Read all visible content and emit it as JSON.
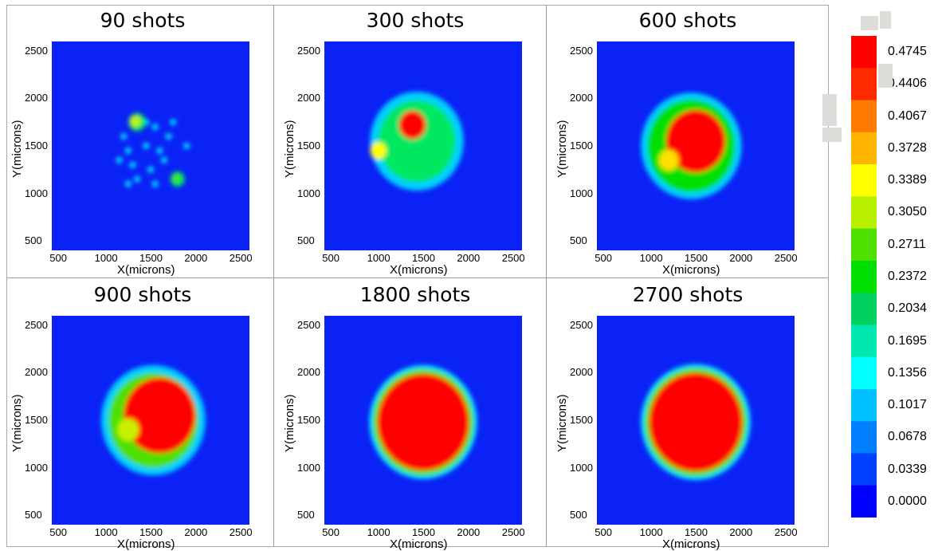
{
  "chart_data": {
    "type": "heatmap",
    "x_label": "X(microns)",
    "y_label": "Y(microns)",
    "x_ticks": [
      "500",
      "1000",
      "1500",
      "2000",
      "2500"
    ],
    "y_ticks": [
      "500",
      "1000",
      "1500",
      "2000",
      "2500"
    ],
    "xlim": [
      400,
      2600
    ],
    "ylim": [
      400,
      2600
    ],
    "panels": [
      {
        "title": "90 shots",
        "shots": 90,
        "note": "scattered small spots, two larger blobs near (1350,1750) and (1800,1150)"
      },
      {
        "title": "300 shots",
        "shots": 300,
        "note": "irregular patch spanning ~900-2000, peak region near (1350,1750)"
      },
      {
        "title": "600 shots",
        "shots": 600,
        "note": "near-circular patch ~900-2000 with large red core"
      },
      {
        "title": "900 shots",
        "shots": 900,
        "note": "patch ~1000-2050 mostly red"
      },
      {
        "title": "1800 shots",
        "shots": 1800,
        "note": "nearly uniform red disk ~1000-2000"
      },
      {
        "title": "2700 shots",
        "shots": 2700,
        "note": "uniform red disk ~1000-2000"
      }
    ],
    "colorbar": {
      "labels": [
        "0.4745",
        "0.4406",
        "0.4067",
        "0.3728",
        "0.3389",
        "0.3050",
        "0.2711",
        "0.2372",
        "0.2034",
        "0.1695",
        "0.1356",
        "0.1017",
        "0.0678",
        "0.0339",
        "0.0000"
      ],
      "colors": [
        "#ff0000",
        "#ff2a00",
        "#ff7a00",
        "#ffb400",
        "#ffff00",
        "#b8f000",
        "#50e000",
        "#00e000",
        "#00d060",
        "#00e8b0",
        "#00ffff",
        "#00c0ff",
        "#0080ff",
        "#0040ff",
        "#0000ff"
      ],
      "min": 0.0,
      "max": 0.4745
    }
  }
}
